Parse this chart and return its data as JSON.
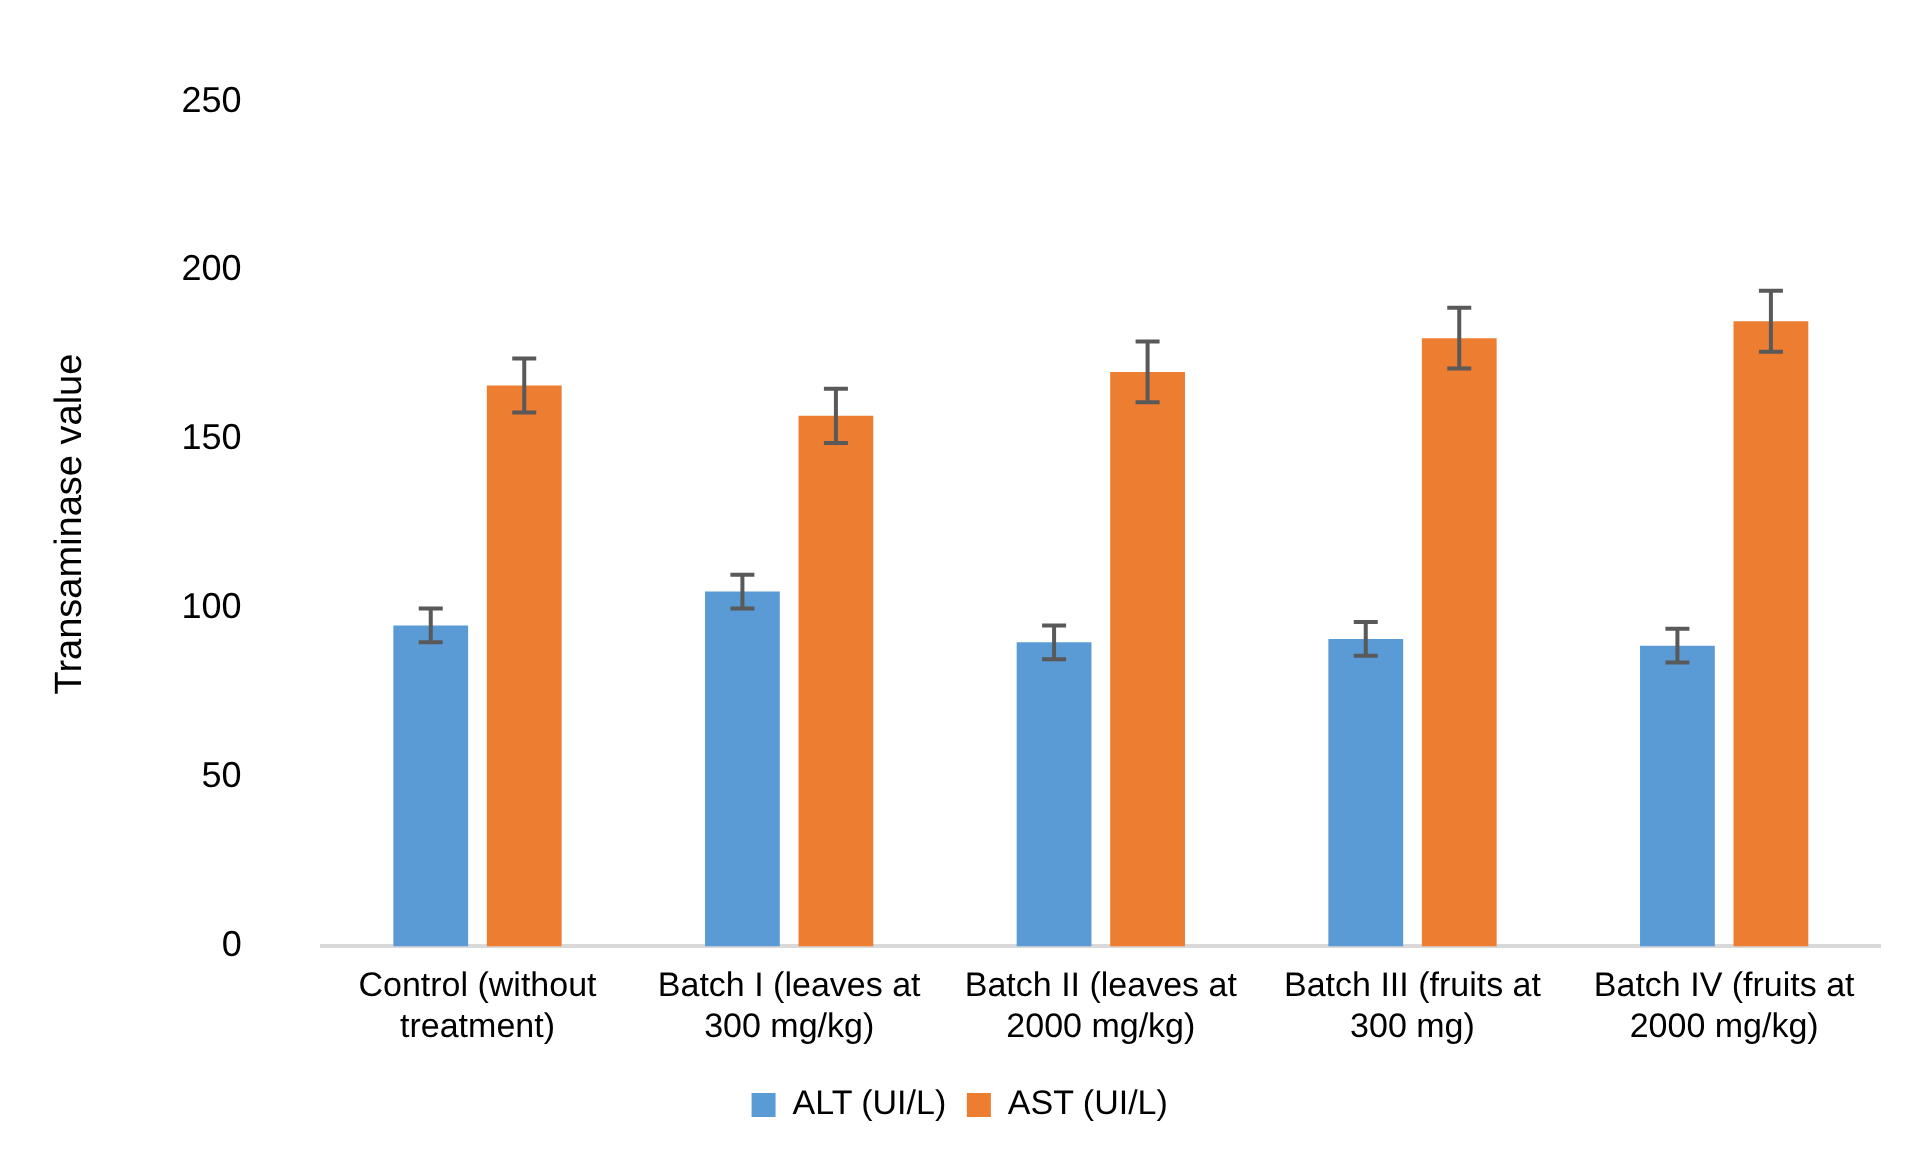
{
  "chart_data": {
    "type": "bar",
    "ylabel": "Transaminase value",
    "categories": [
      "Control (without treatment)",
      "Batch I (leaves at 300 mg/kg)",
      "Batch II (leaves at 2000 mg/kg)",
      "Batch III (fruits at 300 mg)",
      "Batch IV (fruits at 2000 mg/kg)"
    ],
    "series": [
      {
        "name": "ALT (UI/L)",
        "color": "#5b9bd5",
        "values": [
          95,
          105,
          90,
          91,
          89
        ],
        "errors": [
          5,
          5,
          5,
          5,
          5
        ]
      },
      {
        "name": "AST (UI/L)",
        "color": "#ed7d31",
        "values": [
          166,
          157,
          170,
          180,
          185
        ],
        "errors": [
          8,
          8,
          9,
          9,
          9
        ]
      }
    ],
    "ylim": [
      0,
      250
    ],
    "yticks": [
      0,
      50,
      100,
      150,
      200,
      250
    ],
    "grid": false,
    "legend": "bottom"
  }
}
